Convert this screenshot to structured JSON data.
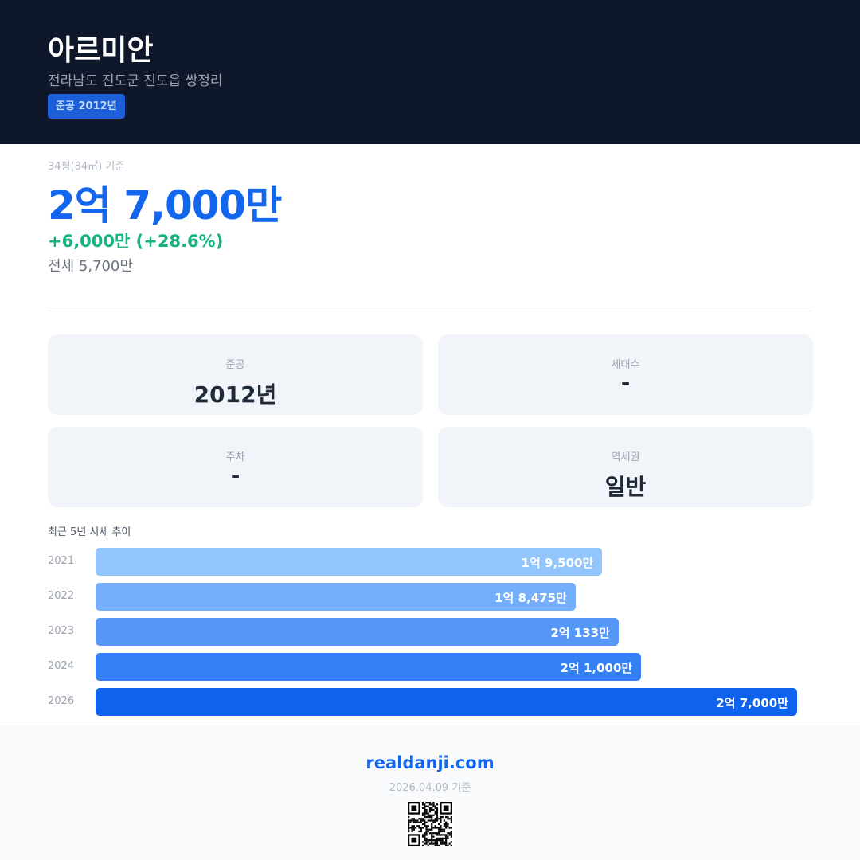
{
  "header": {
    "title": "아르미안",
    "address": "전라남도 진도군 진도읍 쌍정리",
    "badge": "준공 2012년"
  },
  "price": {
    "basis": "34평(84㎡) 기준",
    "value": "2억 7,000만",
    "change": "+6,000만 (+28.6%)",
    "jeonse": "전세 5,700만"
  },
  "cards": [
    {
      "label": "준공",
      "value": "2012년"
    },
    {
      "label": "세대수",
      "value": "-"
    },
    {
      "label": "주차",
      "value": "-"
    },
    {
      "label": "역세권",
      "value": "일반"
    }
  ],
  "chart_data": {
    "type": "bar",
    "title": "최근 5년 시세 추이",
    "categories": [
      "2021",
      "2022",
      "2023",
      "2024",
      "2026"
    ],
    "values": [
      19500,
      18475,
      20133,
      21000,
      27000
    ],
    "labels": [
      "1억 9,500만",
      "1억 8,475만",
      "2억 133만",
      "2억 1,000만",
      "2억 7,000만"
    ],
    "colors": [
      "#93c5fd",
      "#75aefb",
      "#5596f7",
      "#3480f3",
      "#0f62ee"
    ],
    "unit": "만원"
  },
  "footer": {
    "site": "realdanji.com",
    "date": "2026.04.09 기준",
    "qr_icon": "qr-code-icon"
  }
}
